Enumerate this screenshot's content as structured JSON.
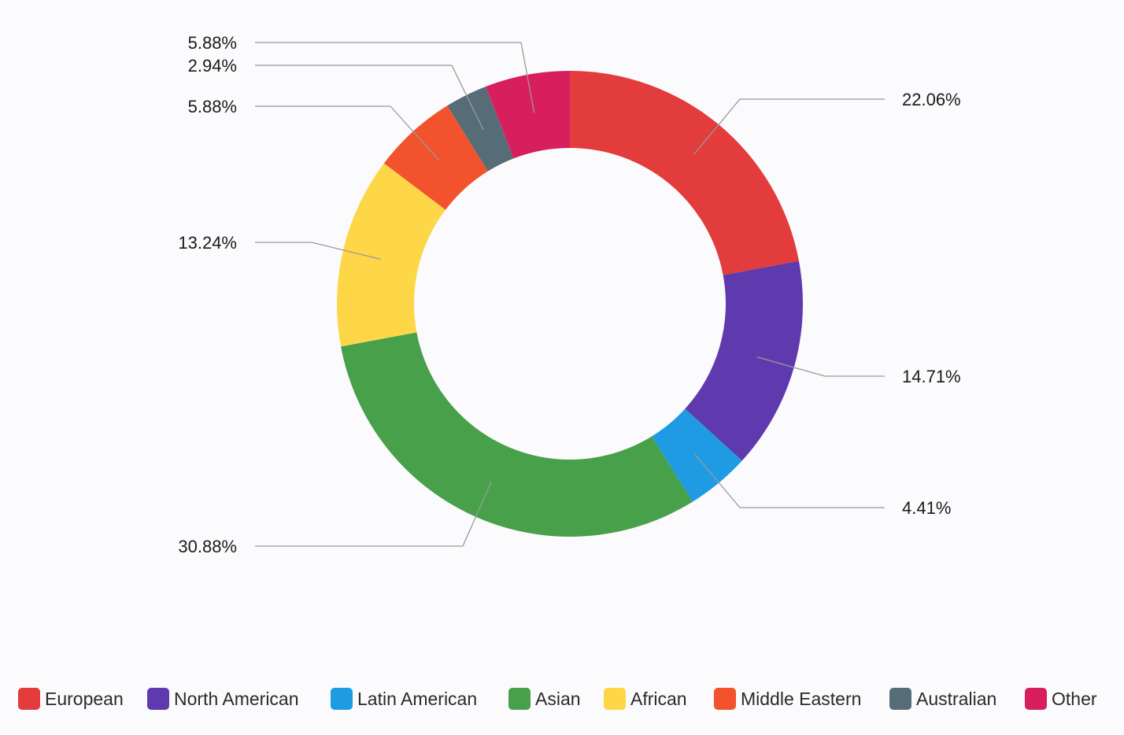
{
  "chart_data": {
    "type": "pie",
    "variant": "donut",
    "categories": [
      "European",
      "North American",
      "Latin American",
      "Asian",
      "African",
      "Middle Eastern",
      "Australian",
      "Other"
    ],
    "values": [
      22.06,
      14.71,
      4.41,
      30.88,
      13.24,
      5.88,
      2.94,
      5.88
    ],
    "value_labels": [
      "22.06%",
      "14.71%",
      "4.41%",
      "30.88%",
      "13.24%",
      "5.88%",
      "2.94%",
      "5.88%"
    ],
    "colors": [
      "#e23c3c",
      "#5e3aae",
      "#1e9be3",
      "#48a04b",
      "#fdd748",
      "#f2532c",
      "#566d78",
      "#d81f5d"
    ],
    "unit": "%",
    "legend_position": "bottom",
    "title": "",
    "start_angle": "12 o'clock",
    "direction": "clockwise"
  }
}
